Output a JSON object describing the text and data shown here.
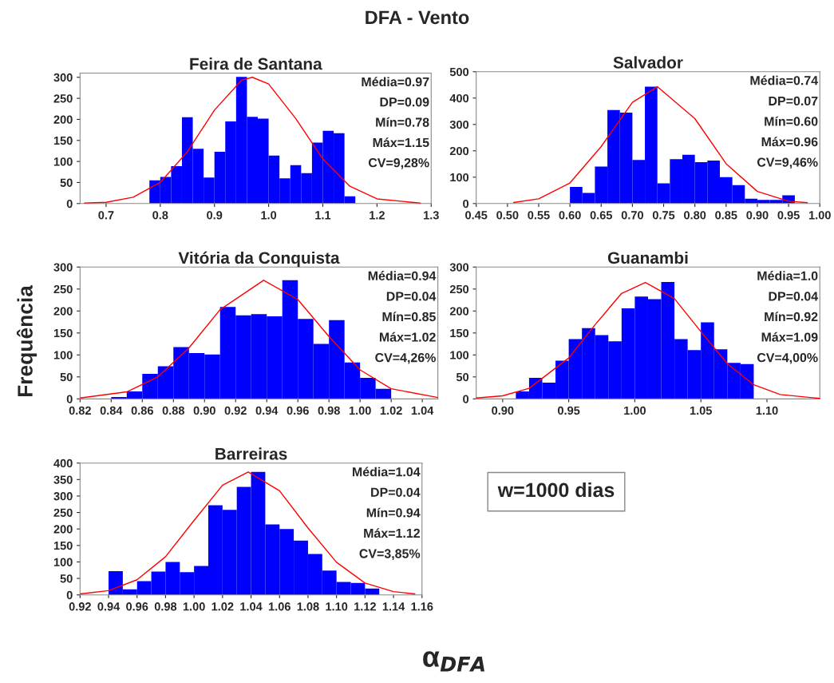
{
  "chart_data": [
    {
      "type": "histogram",
      "title": "Feira de Santana",
      "color": "#0000ff",
      "bins": [
        0.78,
        0.8,
        0.82,
        0.84,
        0.86,
        0.88,
        0.9,
        0.92,
        0.94,
        0.96,
        0.98,
        1.0,
        1.02,
        1.04,
        1.06,
        1.08,
        1.1,
        1.12,
        1.14,
        1.16
      ],
      "values": [
        55,
        63,
        89,
        205,
        130,
        62,
        123,
        195,
        301,
        206,
        202,
        114,
        60,
        91,
        72,
        145,
        173,
        167,
        17
      ],
      "series": [
        {
          "type": "line",
          "color": "#ff0000",
          "x": [
            0.66,
            0.7,
            0.75,
            0.8,
            0.85,
            0.9,
            0.95,
            0.97,
            1.0,
            1.05,
            1.1,
            1.15,
            1.2,
            1.28
          ],
          "values": [
            1,
            3,
            15,
            50,
            123,
            222,
            293,
            300,
            284,
            202,
            106,
            41,
            11,
            1
          ]
        }
      ],
      "xlim": [
        0.652,
        1.3
      ],
      "ylim": [
        0,
        310
      ],
      "xticks": [
        {
          "value": 0.7,
          "label": "0.7"
        },
        {
          "value": 0.8,
          "label": "0.8"
        },
        {
          "value": 0.9,
          "label": "0.9"
        },
        {
          "value": 1.0,
          "label": "1.0"
        },
        {
          "value": 1.1,
          "label": "1.1"
        },
        {
          "value": 1.2,
          "label": "1.2"
        },
        {
          "value": 1.3,
          "label": "1.3"
        }
      ],
      "yticks": [
        0,
        50,
        100,
        150,
        200,
        250,
        300
      ],
      "annotations": [
        "Média=0.97",
        "DP=0.09",
        "Mín=0.78",
        "Máx=1.15",
        "CV=9,28%"
      ]
    },
    {
      "type": "histogram",
      "title": "Salvador",
      "color": "#0000ff",
      "bins": [
        0.6,
        0.62,
        0.64,
        0.66,
        0.68,
        0.7,
        0.72,
        0.74,
        0.76,
        0.78,
        0.8,
        0.82,
        0.84,
        0.86,
        0.88,
        0.9,
        0.92,
        0.94,
        0.96,
        0.98
      ],
      "values": [
        63,
        40,
        140,
        355,
        345,
        165,
        443,
        77,
        168,
        185,
        157,
        163,
        100,
        70,
        18,
        14,
        14,
        31,
        null
      ],
      "series": [
        {
          "type": "line",
          "color": "#ff0000",
          "x": [
            0.51,
            0.55,
            0.6,
            0.65,
            0.7,
            0.74,
            0.8,
            0.85,
            0.9,
            0.95,
            0.98
          ],
          "values": [
            4,
            18,
            78,
            216,
            384,
            443,
            322,
            151,
            46,
            9,
            3
          ]
        }
      ],
      "xlim": [
        0.45,
        1.0
      ],
      "ylim": [
        0,
        500
      ],
      "xticks": [
        {
          "value": 0.45,
          "label": "0.45"
        },
        {
          "value": 0.5,
          "label": "0.50"
        },
        {
          "value": 0.55,
          "label": "0.55"
        },
        {
          "value": 0.6,
          "label": "0.60"
        },
        {
          "value": 0.65,
          "label": "0.65"
        },
        {
          "value": 0.7,
          "label": "0.70"
        },
        {
          "value": 0.75,
          "label": "0.75"
        },
        {
          "value": 0.8,
          "label": "0.80"
        },
        {
          "value": 0.85,
          "label": "0.85"
        },
        {
          "value": 0.9,
          "label": "0.90"
        },
        {
          "value": 0.95,
          "label": "0.95"
        },
        {
          "value": 1.0,
          "label": "1.00"
        }
      ],
      "yticks": [
        0,
        100,
        200,
        300,
        400,
        500
      ],
      "annotations": [
        "Média=0.74",
        "DP=0.07",
        "Mín=0.60",
        "Máx=0.96",
        "CV=9,46%"
      ]
    },
    {
      "type": "histogram",
      "title": "Vitória da Conquista",
      "color": "#0000ff",
      "bins": [
        0.84,
        0.85,
        0.86,
        0.87,
        0.88,
        0.89,
        0.9,
        0.91,
        0.92,
        0.93,
        0.94,
        0.95,
        0.96,
        0.97,
        0.98,
        0.99,
        1.0,
        1.01,
        1.02,
        1.03
      ],
      "values": [
        4,
        17,
        57,
        74,
        118,
        104,
        101,
        209,
        190,
        193,
        188,
        270,
        182,
        125,
        179,
        83,
        48,
        23,
        null
      ],
      "series": [
        {
          "type": "line",
          "color": "#ff0000",
          "x": [
            0.82,
            0.85,
            0.87,
            0.89,
            0.91,
            0.938,
            0.96,
            0.98,
            1.0,
            1.02,
            1.05
          ],
          "values": [
            2,
            16,
            50,
            116,
            203,
            270,
            226,
            142,
            66,
            23,
            3
          ]
        }
      ],
      "xlim": [
        0.82,
        1.05
      ],
      "ylim": [
        0,
        300
      ],
      "xticks": [
        {
          "value": 0.82,
          "label": "0.82"
        },
        {
          "value": 0.84,
          "label": "0.84"
        },
        {
          "value": 0.86,
          "label": "0.86"
        },
        {
          "value": 0.88,
          "label": "0.88"
        },
        {
          "value": 0.9,
          "label": "0.90"
        },
        {
          "value": 0.92,
          "label": "0.92"
        },
        {
          "value": 0.94,
          "label": "0.94"
        },
        {
          "value": 0.96,
          "label": "0.96"
        },
        {
          "value": 0.98,
          "label": "0.98"
        },
        {
          "value": 1.0,
          "label": "1.00"
        },
        {
          "value": 1.02,
          "label": "1.02"
        },
        {
          "value": 1.04,
          "label": "1.04"
        }
      ],
      "yticks": [
        0,
        50,
        100,
        150,
        200,
        250,
        300
      ],
      "annotations": [
        "Média=0.94",
        "DP=0.04",
        "Mín=0.85",
        "Máx=1.02",
        "CV=4,26%"
      ]
    },
    {
      "type": "histogram",
      "title": "Guanambi",
      "color": "#0000ff",
      "bins": [
        0.91,
        0.92,
        0.93,
        0.94,
        0.95,
        0.96,
        0.97,
        0.98,
        0.99,
        1.0,
        1.01,
        1.02,
        1.03,
        1.04,
        1.05,
        1.06,
        1.07,
        1.08,
        1.09
      ],
      "values": [
        17,
        48,
        37,
        87,
        136,
        161,
        145,
        131,
        206,
        233,
        227,
        266,
        136,
        111,
        174,
        113,
        82,
        79
      ],
      "series": [
        {
          "type": "line",
          "color": "#ff0000",
          "x": [
            0.88,
            0.9,
            0.92,
            0.95,
            0.97,
            0.99,
            1.008,
            1.03,
            1.05,
            1.07,
            1.09,
            1.11,
            1.14
          ],
          "values": [
            2,
            7,
            24,
            93,
            169,
            240,
            265,
            228,
            153,
            80,
            32,
            10,
            1
          ]
        }
      ],
      "xlim": [
        0.88,
        1.14
      ],
      "ylim": [
        0,
        300
      ],
      "xticks": [
        {
          "value": 0.9,
          "label": "0.90"
        },
        {
          "value": 0.95,
          "label": "0.95"
        },
        {
          "value": 1.0,
          "label": "1.00"
        },
        {
          "value": 1.05,
          "label": "1.05"
        },
        {
          "value": 1.1,
          "label": "1.10"
        }
      ],
      "yticks": [
        0,
        50,
        100,
        150,
        200,
        250,
        300
      ],
      "annotations": [
        "Média=1.0",
        "DP=0.04",
        "Mín=0.92",
        "Máx=1.09",
        "CV=4,00%"
      ]
    },
    {
      "type": "histogram",
      "title": "Barreiras",
      "color": "#0000ff",
      "bins": [
        0.93,
        0.94,
        0.95,
        0.96,
        0.97,
        0.98,
        0.99,
        1.0,
        1.01,
        1.02,
        1.03,
        1.04,
        1.05,
        1.06,
        1.07,
        1.08,
        1.09,
        1.1,
        1.11,
        1.12,
        1.13
      ],
      "values": [
        null,
        72,
        17,
        42,
        71,
        100,
        69,
        88,
        272,
        258,
        328,
        373,
        214,
        200,
        165,
        124,
        74,
        39,
        36,
        19
      ],
      "series": [
        {
          "type": "line",
          "color": "#ff0000",
          "x": [
            0.92,
            0.94,
            0.96,
            0.98,
            1.0,
            1.02,
            1.038,
            1.06,
            1.08,
            1.1,
            1.12,
            1.14,
            1.155
          ],
          "values": [
            3,
            13,
            46,
            116,
            226,
            333,
            373,
            316,
            203,
            99,
            36,
            10,
            3
          ]
        }
      ],
      "xlim": [
        0.92,
        1.16
      ],
      "ylim": [
        0,
        400
      ],
      "xticks": [
        {
          "value": 0.92,
          "label": "0.92"
        },
        {
          "value": 0.94,
          "label": "0.94"
        },
        {
          "value": 0.96,
          "label": "0.96"
        },
        {
          "value": 0.98,
          "label": "0.98"
        },
        {
          "value": 1.0,
          "label": "1.00"
        },
        {
          "value": 1.02,
          "label": "1.02"
        },
        {
          "value": 1.04,
          "label": "1.04"
        },
        {
          "value": 1.06,
          "label": "1.06"
        },
        {
          "value": 1.08,
          "label": "1.08"
        },
        {
          "value": 1.1,
          "label": "1.10"
        },
        {
          "value": 1.12,
          "label": "1.12"
        },
        {
          "value": 1.14,
          "label": "1.14"
        },
        {
          "value": 1.16,
          "label": "1.16"
        }
      ],
      "yticks": [
        0,
        50,
        100,
        150,
        200,
        250,
        300,
        350,
        400
      ],
      "annotations": [
        "Média=1.04",
        "DP=0.04",
        "Mín=0.94",
        "Máx=1.12",
        "CV=3,85%"
      ]
    },
    {
      "type": "other",
      "title": "DFA - Vento",
      "xlabel": "α$_{DFA}$",
      "ylabel": "Frequência",
      "annotations": [
        "w=1000 dias"
      ]
    }
  ]
}
